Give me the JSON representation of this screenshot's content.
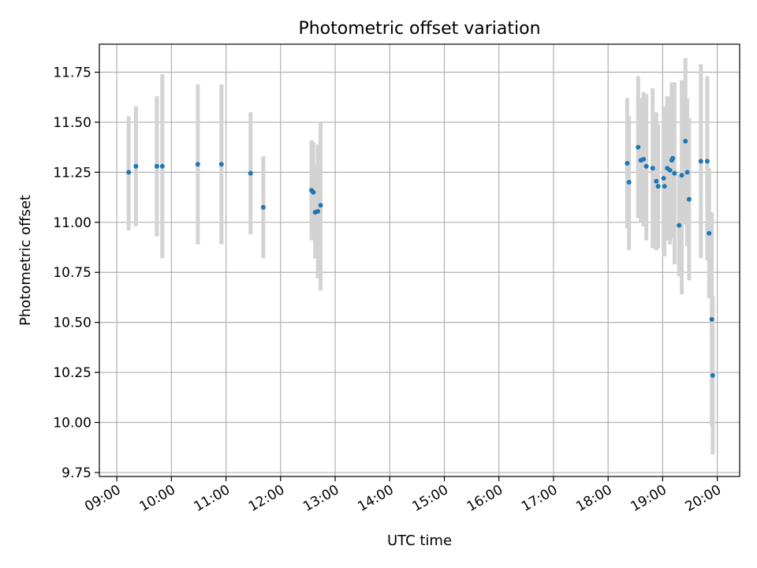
{
  "chart_data": {
    "type": "scatter",
    "title": "Photometric offset variation",
    "xlabel": "UTC time",
    "ylabel": "Photometric offset",
    "x_tick_labels": [
      "09:00",
      "10:00",
      "11:00",
      "12:00",
      "13:00",
      "14:00",
      "15:00",
      "16:00",
      "17:00",
      "18:00",
      "19:00",
      "20:00"
    ],
    "x_ticks_hours": [
      9,
      10,
      11,
      12,
      13,
      14,
      15,
      16,
      17,
      18,
      19,
      20
    ],
    "y_ticks": [
      9.75,
      10.0,
      10.25,
      10.5,
      10.75,
      11.0,
      11.25,
      11.5,
      11.75
    ],
    "y_tick_labels": [
      "9.75",
      "10.00",
      "10.25",
      "10.50",
      "10.75",
      "11.00",
      "11.25",
      "11.50",
      "11.75"
    ],
    "xlim_hours": [
      8.68,
      20.41
    ],
    "ylim": [
      9.73,
      11.89
    ],
    "grid": true,
    "colors": {
      "point": "#1f77b4",
      "errorbar": "#d3d3d3",
      "grid": "#b0b0b0",
      "axis": "#000000"
    },
    "series": [
      {
        "points": [
          {
            "x": "09:13",
            "y": 11.25,
            "lo": 10.96,
            "hi": 11.53
          },
          {
            "x": "09:21",
            "y": 11.28,
            "lo": 10.98,
            "hi": 11.58
          },
          {
            "x": "09:44",
            "y": 11.28,
            "lo": 10.93,
            "hi": 11.63
          },
          {
            "x": "09:50",
            "y": 11.28,
            "lo": 10.82,
            "hi": 11.74
          },
          {
            "x": "10:29",
            "y": 11.29,
            "lo": 10.89,
            "hi": 11.69
          },
          {
            "x": "10:55",
            "y": 11.29,
            "lo": 10.89,
            "hi": 11.69
          },
          {
            "x": "11:27",
            "y": 11.245,
            "lo": 10.94,
            "hi": 11.55
          },
          {
            "x": "11:41",
            "y": 11.075,
            "lo": 10.82,
            "hi": 11.33
          },
          {
            "x": "12:34",
            "y": 11.16,
            "lo": 10.91,
            "hi": 11.41
          },
          {
            "x": "12:36",
            "y": 11.15,
            "lo": 10.95,
            "hi": 11.4
          },
          {
            "x": "12:38",
            "y": 11.05,
            "lo": 10.82,
            "hi": 11.29
          },
          {
            "x": "12:41",
            "y": 11.055,
            "lo": 10.72,
            "hi": 11.39
          },
          {
            "x": "12:44",
            "y": 11.085,
            "lo": 10.66,
            "hi": 11.5
          },
          {
            "x": "18:21",
            "y": 11.295,
            "lo": 10.97,
            "hi": 11.62
          },
          {
            "x": "18:23",
            "y": 11.2,
            "lo": 10.86,
            "hi": 11.53
          },
          {
            "x": "18:33",
            "y": 11.375,
            "lo": 11.02,
            "hi": 11.73
          },
          {
            "x": "18:36",
            "y": 11.31,
            "lo": 11.0,
            "hi": 11.62
          },
          {
            "x": "18:39",
            "y": 11.315,
            "lo": 10.98,
            "hi": 11.65
          },
          {
            "x": "18:42",
            "y": 11.28,
            "lo": 10.91,
            "hi": 11.64
          },
          {
            "x": "18:49",
            "y": 11.27,
            "lo": 10.87,
            "hi": 11.67
          },
          {
            "x": "18:53",
            "y": 11.205,
            "lo": 10.86,
            "hi": 11.55
          },
          {
            "x": "18:55",
            "y": 11.18,
            "lo": 10.87,
            "hi": 11.49
          },
          {
            "x": "19:01",
            "y": 11.22,
            "lo": 10.86,
            "hi": 11.58
          },
          {
            "x": "19:02",
            "y": 11.18,
            "lo": 10.83,
            "hi": 11.53
          },
          {
            "x": "19:05",
            "y": 11.27,
            "lo": 10.91,
            "hi": 11.63
          },
          {
            "x": "19:08",
            "y": 11.26,
            "lo": 10.89,
            "hi": 11.63
          },
          {
            "x": "19:10",
            "y": 11.31,
            "lo": 10.92,
            "hi": 11.7
          },
          {
            "x": "19:11",
            "y": 11.32,
            "lo": 10.99,
            "hi": 11.65
          },
          {
            "x": "19:13",
            "y": 11.245,
            "lo": 10.79,
            "hi": 11.7
          },
          {
            "x": "19:18",
            "y": 10.985,
            "lo": 10.73,
            "hi": 11.24
          },
          {
            "x": "19:21",
            "y": 11.235,
            "lo": 10.64,
            "hi": 11.71
          },
          {
            "x": "19:25",
            "y": 11.405,
            "lo": 10.99,
            "hi": 11.82
          },
          {
            "x": "19:27",
            "y": 11.25,
            "lo": 10.88,
            "hi": 11.62
          },
          {
            "x": "19:29",
            "y": 11.115,
            "lo": 10.71,
            "hi": 11.52
          },
          {
            "x": "19:42",
            "y": 11.305,
            "lo": 10.82,
            "hi": 11.79
          },
          {
            "x": "19:49",
            "y": 11.305,
            "lo": 10.81,
            "hi": 11.73
          },
          {
            "x": "19:51",
            "y": 10.945,
            "lo": 10.62,
            "hi": 11.27
          },
          {
            "x": "19:54",
            "y": 10.515,
            "lo": 9.98,
            "hi": 11.05
          },
          {
            "x": "19:55",
            "y": 10.235,
            "lo": 9.84,
            "hi": 10.63
          }
        ]
      }
    ]
  }
}
